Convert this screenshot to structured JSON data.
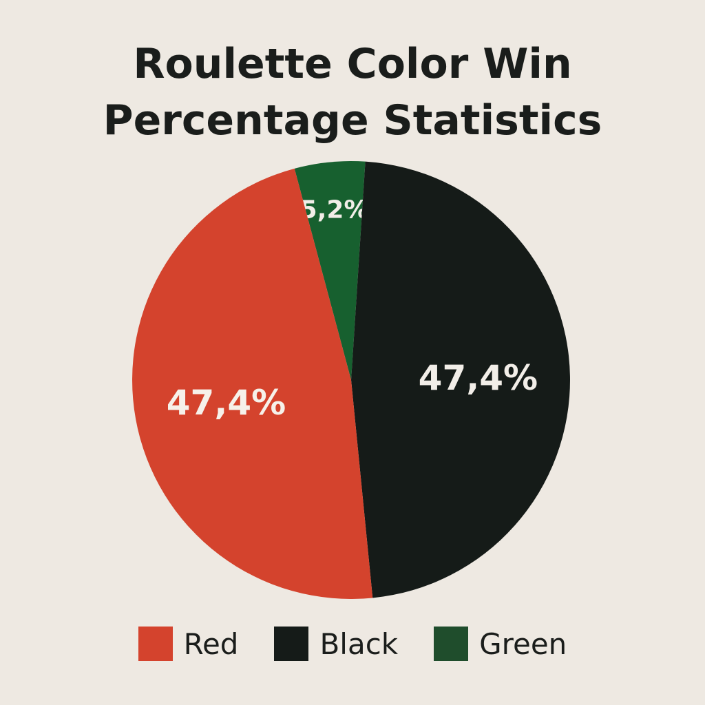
{
  "chart_data": {
    "type": "pie",
    "title_lines": [
      "Roulette Color Win",
      "Percentage Statistics"
    ],
    "slices": [
      {
        "label": "Green",
        "value": 5.2,
        "display": "5,2%",
        "color": "#17602f",
        "label_color": "#f2eee8"
      },
      {
        "label": "Black",
        "value": 47.4,
        "display": "47,4%",
        "color": "#151b18",
        "label_color": "#f2eee8"
      },
      {
        "label": "Red",
        "value": 47.4,
        "display": "47,4%",
        "color": "#d4432d",
        "label_color": "#f6f1ea"
      }
    ],
    "legend": [
      {
        "label": "Red",
        "color": "#d4432d"
      },
      {
        "label": "Black",
        "color": "#151b18"
      },
      {
        "label": "Green",
        "color": "#1f4d2c"
      }
    ],
    "legend_position": "bottom"
  }
}
